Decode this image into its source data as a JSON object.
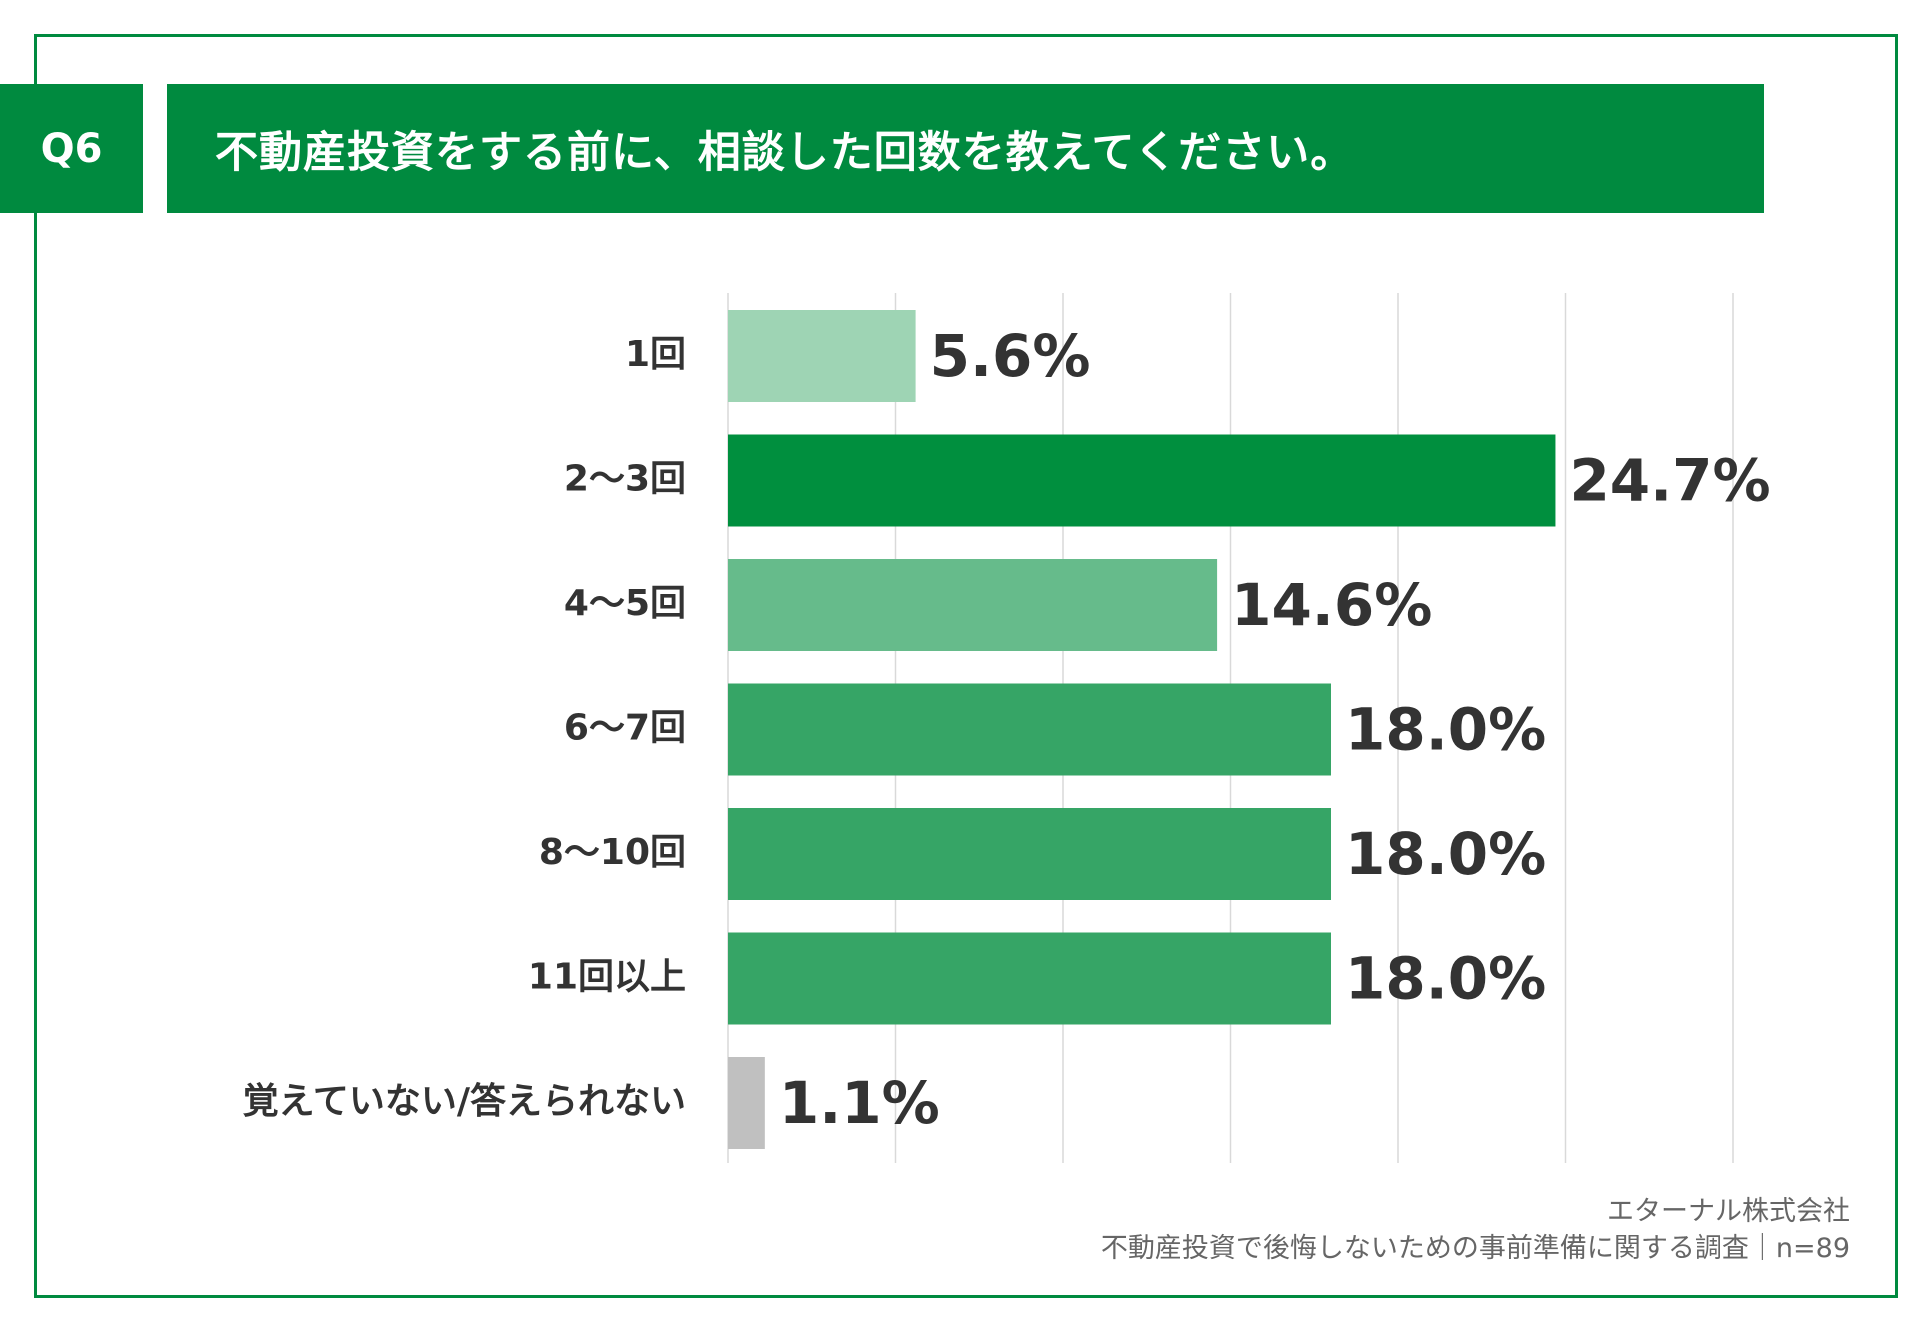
{
  "question": {
    "badge": "Q6",
    "title": "不動産投資をする前に、相談した回数を教えてください。"
  },
  "chart_data": {
    "type": "bar",
    "orientation": "horizontal",
    "categories": [
      "1回",
      "2〜3回",
      "4〜5回",
      "6〜7回",
      "8〜10回",
      "11回以上",
      "覚えていない/答えられない"
    ],
    "values": [
      5.6,
      24.7,
      14.6,
      18.0,
      18.0,
      18.0,
      1.1
    ],
    "value_labels": [
      "5.6%",
      "24.7%",
      "14.6%",
      "18.0%",
      "18.0%",
      "18.0%",
      "1.1%"
    ],
    "bar_colors": [
      "#9ed4b4",
      "#008f3e",
      "#66bb8b",
      "#36a566",
      "#36a566",
      "#36a566",
      "#c0c0c0"
    ],
    "xlim": [
      0,
      30
    ],
    "grid_step": 5,
    "grid": true
  },
  "colors": {
    "accent": "#008a3f",
    "text": "#333333",
    "gridline": "#d9d9d9"
  },
  "source": {
    "company": "エターナル株式会社",
    "survey": "不動産投資で後悔しないための事前準備に関する調査｜n=89"
  }
}
